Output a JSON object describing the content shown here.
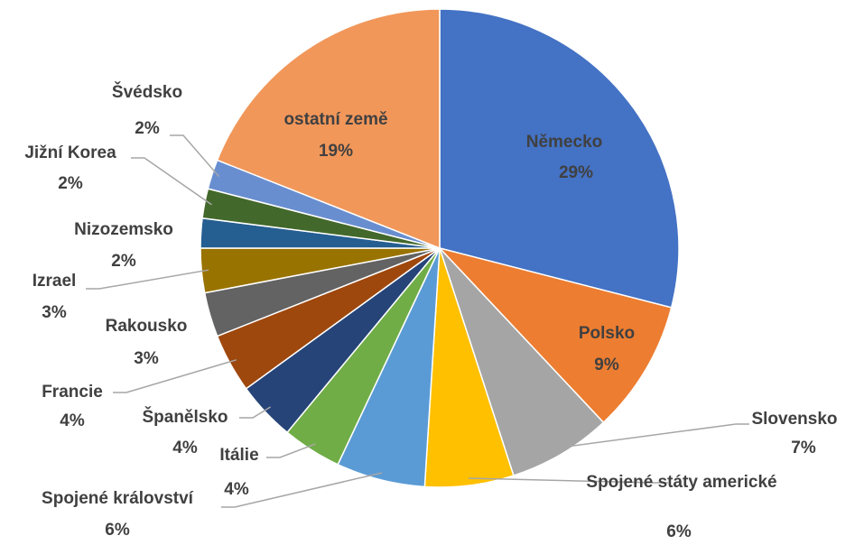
{
  "chart_data": {
    "type": "pie",
    "categories": [
      "Německo",
      "Polsko",
      "Slovensko",
      "Spojené státy americké",
      "Spojené království",
      "Itálie",
      "Španělsko",
      "Francie",
      "Rakousko",
      "Izrael",
      "Nizozemsko",
      "Jižní Korea",
      "Švédsko",
      "ostatní země"
    ],
    "values": [
      29,
      9,
      7,
      6,
      6,
      4,
      4,
      4,
      3,
      3,
      2,
      2,
      2,
      19
    ],
    "value_labels": [
      "29%",
      "9%",
      "7%",
      "6%",
      "6%",
      "4%",
      "4%",
      "4%",
      "3%",
      "3%",
      "2%",
      "2%",
      "2%",
      "19%"
    ],
    "colors": [
      "#4472c4",
      "#ed7d31",
      "#a5a5a5",
      "#ffc000",
      "#5b9bd5",
      "#70ad47",
      "#264478",
      "#9e480e",
      "#636363",
      "#997300",
      "#255e91",
      "#43682b",
      "#698ed0",
      "#f1975a"
    ]
  }
}
